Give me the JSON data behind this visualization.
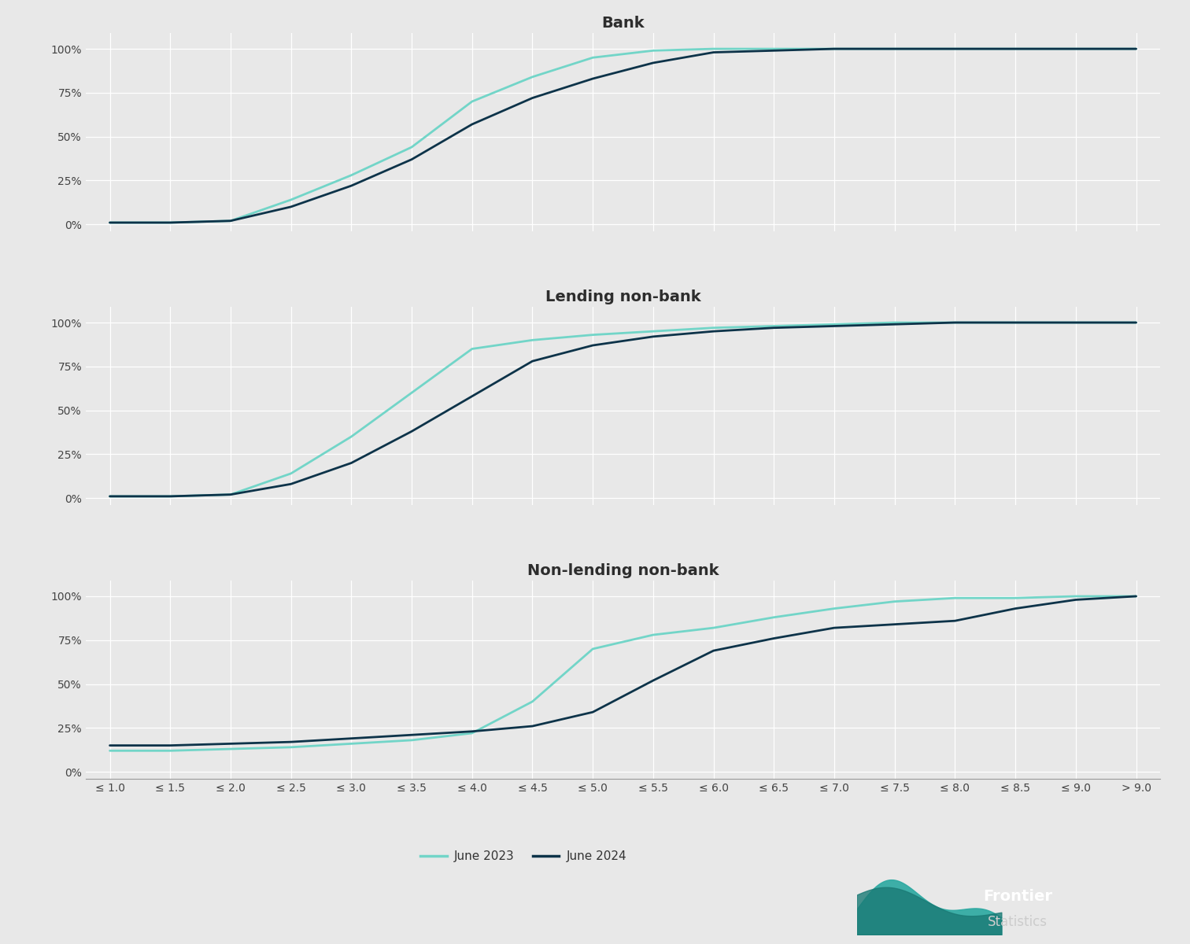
{
  "x_labels": [
    "≤ 1.0",
    "≤ 1.5",
    "≤ 2.0",
    "≤ 2.5",
    "≤ 3.0",
    "≤ 3.5",
    "≤ 4.0",
    "≤ 4.5",
    "≤ 5.0",
    "≤ 5.5",
    "≤ 6.0",
    "≤ 6.5",
    "≤ 7.0",
    "≤ 7.5",
    "≤ 8.0",
    "≤ 8.5",
    "≤ 9.0",
    "> 9.0"
  ],
  "panels": [
    {
      "title": "Bank",
      "jun2023": [
        1,
        1,
        2,
        14,
        28,
        44,
        70,
        84,
        95,
        99,
        100,
        100,
        100,
        100,
        100,
        100,
        100,
        100
      ],
      "jun2024": [
        1,
        1,
        2,
        10,
        22,
        37,
        57,
        72,
        83,
        92,
        98,
        99,
        100,
        100,
        100,
        100,
        100,
        100
      ]
    },
    {
      "title": "Lending non-bank",
      "jun2023": [
        1,
        1,
        2,
        14,
        35,
        60,
        85,
        90,
        93,
        95,
        97,
        98,
        99,
        100,
        100,
        100,
        100,
        100
      ],
      "jun2024": [
        1,
        1,
        2,
        8,
        20,
        38,
        58,
        78,
        87,
        92,
        95,
        97,
        98,
        99,
        100,
        100,
        100,
        100
      ]
    },
    {
      "title": "Non-lending non-bank",
      "jun2023": [
        12,
        12,
        13,
        14,
        16,
        18,
        22,
        40,
        70,
        78,
        82,
        88,
        93,
        97,
        99,
        99,
        100,
        100
      ],
      "jun2024": [
        15,
        15,
        16,
        17,
        19,
        21,
        23,
        26,
        34,
        52,
        69,
        76,
        82,
        84,
        86,
        93,
        98,
        100
      ]
    }
  ],
  "color_2023": "#72d5c8",
  "color_2024": "#0d3349",
  "bg_color": "#e8e8e8",
  "grid_color": "#ffffff",
  "title_fontsize": 14,
  "tick_fontsize": 10,
  "legend_fontsize": 11,
  "line_width": 2.0,
  "yticks": [
    0,
    25,
    50,
    75,
    100
  ],
  "ytick_labels": [
    "0%",
    "25%",
    "50%",
    "75%",
    "100%"
  ],
  "legend_labels": [
    "June 2023",
    "June 2024"
  ],
  "logo_bg_color": "#2d3748",
  "logo_text_frontier": "Frontier",
  "logo_text_statistics": " Statistics"
}
